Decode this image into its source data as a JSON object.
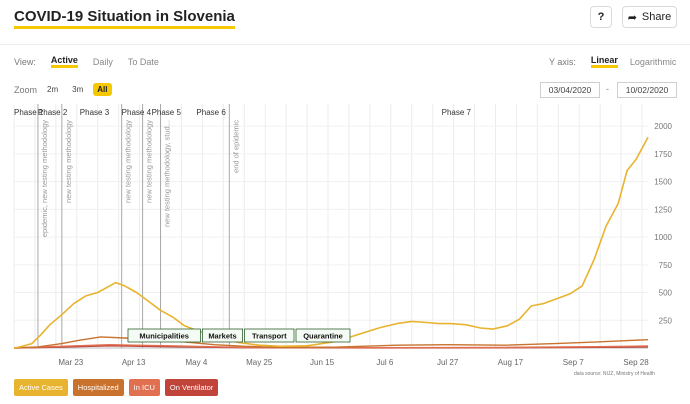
{
  "header": {
    "title": "COVID-19 Situation in Slovenia",
    "help_label": "?",
    "share_label": "Share"
  },
  "controls": {
    "view_label": "View:",
    "view_options": [
      {
        "label": "Active",
        "active": true
      },
      {
        "label": "Daily",
        "active": false
      },
      {
        "label": "To Date",
        "active": false
      }
    ],
    "yaxis_label": "Y axis:",
    "yaxis_options": [
      {
        "label": "Linear",
        "active": true
      },
      {
        "label": "Logarithmic",
        "active": false
      }
    ],
    "zoom_label": "Zoom",
    "zoom_options": [
      {
        "label": "2m",
        "active": false
      },
      {
        "label": "3m",
        "active": false
      },
      {
        "label": "All",
        "active": true
      }
    ],
    "date_from": "03/04/2020",
    "date_to": "10/02/2020",
    "date_separator": "-"
  },
  "source_note": "data source: NIJZ, Ministry of Health",
  "colors": {
    "active": "#e8b32e",
    "hospitalized": "#c8722e",
    "icu": "#e07050",
    "ventilator": "#c0443a",
    "accent": "#f6c800"
  },
  "chart_data": {
    "type": "line",
    "x_range": [
      "2020-03-04",
      "2020-10-02"
    ],
    "ylim": [
      0,
      2200
    ],
    "y_ticks": [
      250,
      500,
      750,
      1000,
      1250,
      1500,
      1750,
      2000
    ],
    "x_ticks": [
      {
        "date": "2020-03-23",
        "label": "Mar 23"
      },
      {
        "date": "2020-04-13",
        "label": "Apr 13"
      },
      {
        "date": "2020-05-04",
        "label": "May 4"
      },
      {
        "date": "2020-05-25",
        "label": "May 25"
      },
      {
        "date": "2020-06-15",
        "label": "Jun 15"
      },
      {
        "date": "2020-07-06",
        "label": "Jul 6"
      },
      {
        "date": "2020-07-27",
        "label": "Jul 27"
      },
      {
        "date": "2020-08-17",
        "label": "Aug 17"
      },
      {
        "date": "2020-09-07",
        "label": "Sep 7"
      },
      {
        "date": "2020-09-28",
        "label": "Sep 28"
      }
    ],
    "grid": true,
    "legend_position": "bottom-left",
    "phases": [
      {
        "label": "Phase 1",
        "date": "2020-03-04"
      },
      {
        "label": "Phase 2",
        "date": "2020-03-12"
      },
      {
        "label": "Phase 3",
        "date": "2020-03-26"
      },
      {
        "label": "Phase 4",
        "date": "2020-04-09"
      },
      {
        "label": "Phase 5",
        "date": "2020-04-19"
      },
      {
        "label": "Phase 6",
        "date": "2020-05-04"
      },
      {
        "label": "Phase 7",
        "date": "2020-07-25"
      }
    ],
    "events": [
      {
        "date": "2020-03-12",
        "label": "epidemic, new testing methodology"
      },
      {
        "date": "2020-03-20",
        "label": "new testing methodology"
      },
      {
        "date": "2020-04-09",
        "label": "new testing methodology"
      },
      {
        "date": "2020-04-16",
        "label": "new testing methodology"
      },
      {
        "date": "2020-04-22",
        "label": "new testing methodology, stud..."
      },
      {
        "date": "2020-05-15",
        "label": "end of epidemic"
      }
    ],
    "measures": [
      {
        "label": "Municipalities"
      },
      {
        "label": "Markets"
      },
      {
        "label": "Transport"
      },
      {
        "label": "Quarantine"
      }
    ],
    "series": [
      {
        "name": "Active Cases",
        "points": [
          [
            "2020-03-04",
            0
          ],
          [
            "2020-03-06",
            10
          ],
          [
            "2020-03-10",
            40
          ],
          [
            "2020-03-13",
            120
          ],
          [
            "2020-03-16",
            210
          ],
          [
            "2020-03-20",
            300
          ],
          [
            "2020-03-24",
            400
          ],
          [
            "2020-03-28",
            470
          ],
          [
            "2020-04-01",
            500
          ],
          [
            "2020-04-05",
            560
          ],
          [
            "2020-04-07",
            590
          ],
          [
            "2020-04-10",
            560
          ],
          [
            "2020-04-14",
            500
          ],
          [
            "2020-04-18",
            420
          ],
          [
            "2020-04-22",
            340
          ],
          [
            "2020-04-26",
            280
          ],
          [
            "2020-04-30",
            200
          ],
          [
            "2020-05-03",
            170
          ],
          [
            "2020-05-07",
            130
          ],
          [
            "2020-05-12",
            90
          ],
          [
            "2020-05-18",
            50
          ],
          [
            "2020-05-25",
            25
          ],
          [
            "2020-06-01",
            15
          ],
          [
            "2020-06-10",
            20
          ],
          [
            "2020-06-20",
            60
          ],
          [
            "2020-06-28",
            130
          ],
          [
            "2020-07-04",
            180
          ],
          [
            "2020-07-10",
            220
          ],
          [
            "2020-07-15",
            240
          ],
          [
            "2020-07-20",
            230
          ],
          [
            "2020-07-24",
            220
          ],
          [
            "2020-07-28",
            220
          ],
          [
            "2020-08-02",
            210
          ],
          [
            "2020-08-07",
            180
          ],
          [
            "2020-08-11",
            170
          ],
          [
            "2020-08-16",
            200
          ],
          [
            "2020-08-20",
            260
          ],
          [
            "2020-08-24",
            380
          ],
          [
            "2020-08-28",
            400
          ],
          [
            "2020-09-02",
            450
          ],
          [
            "2020-09-06",
            490
          ],
          [
            "2020-09-10",
            560
          ],
          [
            "2020-09-14",
            800
          ],
          [
            "2020-09-18",
            1100
          ],
          [
            "2020-09-22",
            1300
          ],
          [
            "2020-09-25",
            1600
          ],
          [
            "2020-09-28",
            1700
          ],
          [
            "2020-10-02",
            1900
          ]
        ]
      },
      {
        "name": "Hospitalized",
        "points": [
          [
            "2020-03-04",
            0
          ],
          [
            "2020-03-12",
            10
          ],
          [
            "2020-03-20",
            40
          ],
          [
            "2020-03-26",
            70
          ],
          [
            "2020-04-02",
            100
          ],
          [
            "2020-04-10",
            90
          ],
          [
            "2020-04-20",
            80
          ],
          [
            "2020-04-30",
            55
          ],
          [
            "2020-05-10",
            30
          ],
          [
            "2020-05-20",
            15
          ],
          [
            "2020-06-01",
            5
          ],
          [
            "2020-06-20",
            8
          ],
          [
            "2020-07-10",
            25
          ],
          [
            "2020-07-27",
            30
          ],
          [
            "2020-08-15",
            25
          ],
          [
            "2020-09-01",
            40
          ],
          [
            "2020-09-15",
            55
          ],
          [
            "2020-10-02",
            75
          ]
        ]
      },
      {
        "name": "In ICU",
        "points": [
          [
            "2020-03-04",
            0
          ],
          [
            "2020-03-20",
            15
          ],
          [
            "2020-04-05",
            30
          ],
          [
            "2020-04-25",
            20
          ],
          [
            "2020-05-20",
            5
          ],
          [
            "2020-07-01",
            3
          ],
          [
            "2020-08-15",
            5
          ],
          [
            "2020-09-15",
            12
          ],
          [
            "2020-10-02",
            18
          ]
        ]
      },
      {
        "name": "On Ventilator",
        "points": [
          [
            "2020-03-04",
            0
          ],
          [
            "2020-03-20",
            8
          ],
          [
            "2020-04-05",
            20
          ],
          [
            "2020-04-25",
            12
          ],
          [
            "2020-05-20",
            3
          ],
          [
            "2020-07-01",
            1
          ],
          [
            "2020-08-15",
            2
          ],
          [
            "2020-09-15",
            6
          ],
          [
            "2020-10-02",
            10
          ]
        ]
      }
    ]
  }
}
